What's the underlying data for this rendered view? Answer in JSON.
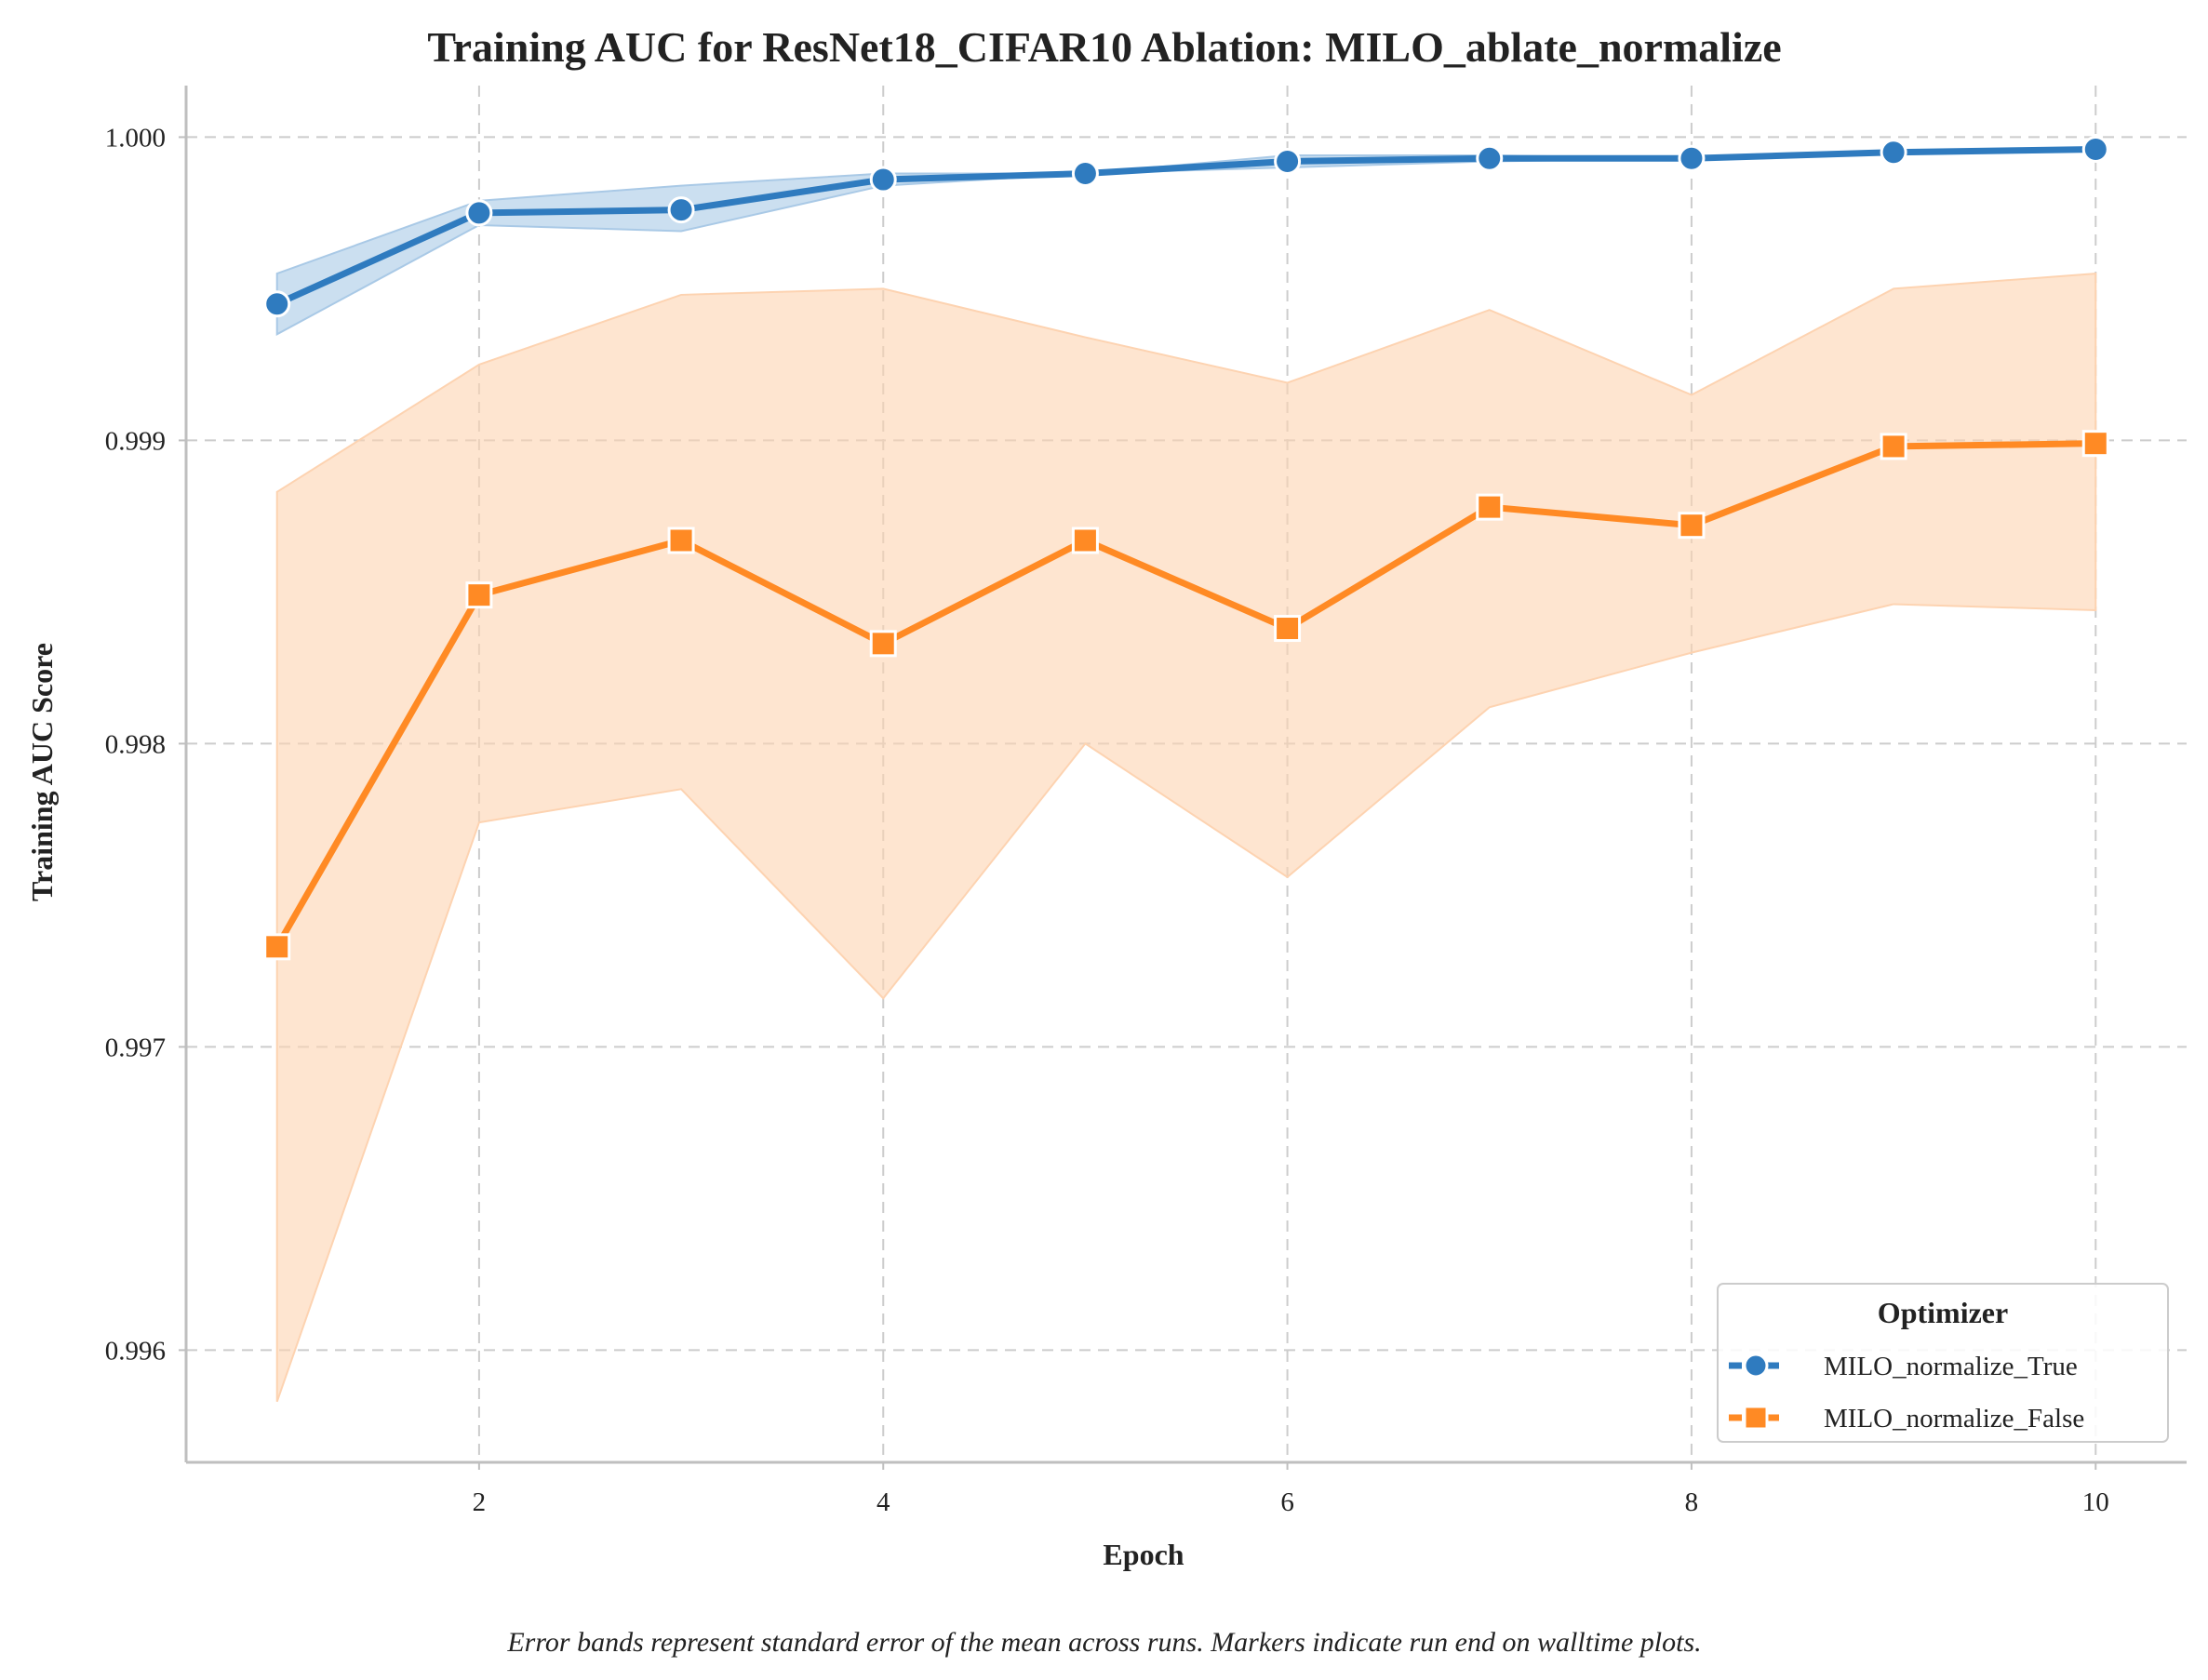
{
  "chart_data": {
    "type": "line",
    "title": "Training AUC for ResNet18_CIFAR10 Ablation: MILO_ablate_normalize",
    "xlabel": "Epoch",
    "ylabel": "Training AUC Score",
    "caption": "Error bands represent standard error of the mean across runs. Markers indicate run end on walltime plots.",
    "x": [
      1,
      2,
      3,
      4,
      5,
      6,
      7,
      8,
      9,
      10
    ],
    "xlim": [
      0.55,
      10.45
    ],
    "ylim": [
      0.99563,
      1.00017
    ],
    "x_ticks": [
      2,
      4,
      6,
      8,
      10
    ],
    "x_tick_labels": [
      "2",
      "4",
      "6",
      "8",
      "10"
    ],
    "y_ticks": [
      0.996,
      0.997,
      0.998,
      0.999,
      1.0
    ],
    "y_tick_labels": [
      "0.996",
      "0.997",
      "0.998",
      "0.999",
      "1.000"
    ],
    "grid": true,
    "legend": {
      "title": "Optimizer",
      "placement": "lower-right"
    },
    "series": [
      {
        "name": "MILO_normalize_True",
        "color": "#2f7bbf",
        "band_color": "#a9c9e6",
        "marker": "circle",
        "values": [
          0.99945,
          0.99975,
          0.99976,
          0.99986,
          0.99988,
          0.99992,
          0.99993,
          0.99993,
          0.99995,
          0.99996
        ],
        "band_lower": [
          0.99935,
          0.99971,
          0.99969,
          0.99984,
          0.99988,
          0.9999,
          0.99992,
          0.99993,
          0.99995,
          0.99996
        ],
        "band_upper": [
          0.99955,
          0.99979,
          0.99984,
          0.99988,
          0.99988,
          0.99994,
          0.99994,
          0.99993,
          0.99995,
          0.99996
        ]
      },
      {
        "name": "MILO_normalize_False",
        "color": "#ff8a24",
        "band_color": "#fdd3b1",
        "marker": "square",
        "values": [
          0.99733,
          0.99849,
          0.99867,
          0.99833,
          0.99867,
          0.99838,
          0.99878,
          0.99872,
          0.99898,
          0.99899
        ],
        "band_lower": [
          0.99583,
          0.99774,
          0.99785,
          0.99716,
          0.998,
          0.99756,
          0.99812,
          0.9983,
          0.99846,
          0.99844
        ],
        "band_upper": [
          0.99883,
          0.99925,
          0.99948,
          0.9995,
          0.99934,
          0.99919,
          0.99943,
          0.99915,
          0.9995,
          0.99955
        ]
      }
    ]
  }
}
